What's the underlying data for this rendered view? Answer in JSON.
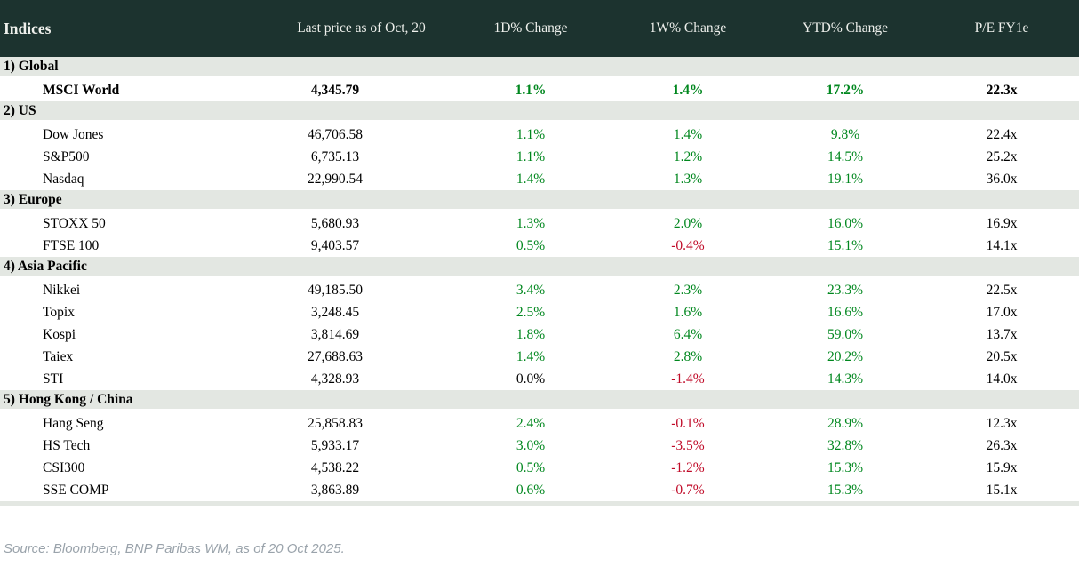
{
  "source_note": "Source: Bloomberg, BNP Paribas WM, as of 20 Oct 2025.",
  "colors": {
    "header_bg": "#1c332f",
    "section_bg": "#e3e7e2",
    "positive": "#00871e",
    "negative": "#c00a28",
    "neutral": "#000000",
    "source_text": "#9aa3ab"
  },
  "chart_data": {
    "type": "table",
    "title": "Indices",
    "columns": [
      "Indices",
      "Last price as of Oct, 20",
      "1D% Change",
      "1W% Change",
      "YTD% Change",
      "P/E FY1e"
    ],
    "sections": [
      {
        "label": "1) Global",
        "rows": [
          {
            "name": "MSCI World",
            "bold": true,
            "cells": [
              {
                "t": "4,345.79",
                "c": "black"
              },
              {
                "t": "1.1%",
                "c": "green"
              },
              {
                "t": "1.4%",
                "c": "green"
              },
              {
                "t": "17.2%",
                "c": "green"
              },
              {
                "t": "22.3x",
                "c": "black"
              }
            ]
          }
        ]
      },
      {
        "label": "2) US",
        "rows": [
          {
            "name": "Dow Jones",
            "bold": false,
            "cells": [
              {
                "t": "46,706.58",
                "c": "black"
              },
              {
                "t": "1.1%",
                "c": "green"
              },
              {
                "t": "1.4%",
                "c": "green"
              },
              {
                "t": "9.8%",
                "c": "green"
              },
              {
                "t": "22.4x",
                "c": "black"
              }
            ]
          },
          {
            "name": "S&P500",
            "bold": false,
            "cells": [
              {
                "t": "6,735.13",
                "c": "black"
              },
              {
                "t": "1.1%",
                "c": "green"
              },
              {
                "t": "1.2%",
                "c": "green"
              },
              {
                "t": "14.5%",
                "c": "green"
              },
              {
                "t": "25.2x",
                "c": "black"
              }
            ]
          },
          {
            "name": "Nasdaq",
            "bold": false,
            "cells": [
              {
                "t": "22,990.54",
                "c": "black"
              },
              {
                "t": "1.4%",
                "c": "green"
              },
              {
                "t": "1.3%",
                "c": "green"
              },
              {
                "t": "19.1%",
                "c": "green"
              },
              {
                "t": "36.0x",
                "c": "black"
              }
            ]
          }
        ]
      },
      {
        "label": "3) Europe",
        "rows": [
          {
            "name": "STOXX 50",
            "bold": false,
            "cells": [
              {
                "t": "5,680.93",
                "c": "black"
              },
              {
                "t": "1.3%",
                "c": "green"
              },
              {
                "t": "2.0%",
                "c": "green"
              },
              {
                "t": "16.0%",
                "c": "green"
              },
              {
                "t": "16.9x",
                "c": "black"
              }
            ]
          },
          {
            "name": "FTSE 100",
            "bold": false,
            "cells": [
              {
                "t": "9,403.57",
                "c": "black"
              },
              {
                "t": "0.5%",
                "c": "green"
              },
              {
                "t": "-0.4%",
                "c": "red"
              },
              {
                "t": "15.1%",
                "c": "green"
              },
              {
                "t": "14.1x",
                "c": "black"
              }
            ]
          }
        ]
      },
      {
        "label": "4) Asia Pacific",
        "rows": [
          {
            "name": "Nikkei",
            "bold": false,
            "cells": [
              {
                "t": "49,185.50",
                "c": "black"
              },
              {
                "t": "3.4%",
                "c": "green"
              },
              {
                "t": "2.3%",
                "c": "green"
              },
              {
                "t": "23.3%",
                "c": "green"
              },
              {
                "t": "22.5x",
                "c": "black"
              }
            ]
          },
          {
            "name": "Topix",
            "bold": false,
            "cells": [
              {
                "t": "3,248.45",
                "c": "black"
              },
              {
                "t": "2.5%",
                "c": "green"
              },
              {
                "t": "1.6%",
                "c": "green"
              },
              {
                "t": "16.6%",
                "c": "green"
              },
              {
                "t": "17.0x",
                "c": "black"
              }
            ]
          },
          {
            "name": "Kospi",
            "bold": false,
            "cells": [
              {
                "t": "3,814.69",
                "c": "black"
              },
              {
                "t": "1.8%",
                "c": "green"
              },
              {
                "t": "6.4%",
                "c": "green"
              },
              {
                "t": "59.0%",
                "c": "green"
              },
              {
                "t": "13.7x",
                "c": "black"
              }
            ]
          },
          {
            "name": "Taiex",
            "bold": false,
            "cells": [
              {
                "t": "27,688.63",
                "c": "black"
              },
              {
                "t": "1.4%",
                "c": "green"
              },
              {
                "t": "2.8%",
                "c": "green"
              },
              {
                "t": "20.2%",
                "c": "green"
              },
              {
                "t": "20.5x",
                "c": "black"
              }
            ]
          },
          {
            "name": "STI",
            "bold": false,
            "cells": [
              {
                "t": "4,328.93",
                "c": "black"
              },
              {
                "t": "0.0%",
                "c": "black"
              },
              {
                "t": "-1.4%",
                "c": "red"
              },
              {
                "t": "14.3%",
                "c": "green"
              },
              {
                "t": "14.0x",
                "c": "black"
              }
            ]
          }
        ]
      },
      {
        "label": "5) Hong Kong / China",
        "rows": [
          {
            "name": "Hang Seng",
            "bold": false,
            "cells": [
              {
                "t": "25,858.83",
                "c": "black"
              },
              {
                "t": "2.4%",
                "c": "green"
              },
              {
                "t": "-0.1%",
                "c": "red"
              },
              {
                "t": "28.9%",
                "c": "green"
              },
              {
                "t": "12.3x",
                "c": "black"
              }
            ]
          },
          {
            "name": "HS Tech",
            "bold": false,
            "cells": [
              {
                "t": "5,933.17",
                "c": "black"
              },
              {
                "t": "3.0%",
                "c": "green"
              },
              {
                "t": "-3.5%",
                "c": "red"
              },
              {
                "t": "32.8%",
                "c": "green"
              },
              {
                "t": "26.3x",
                "c": "black"
              }
            ]
          },
          {
            "name": "CSI300",
            "bold": false,
            "cells": [
              {
                "t": "4,538.22",
                "c": "black"
              },
              {
                "t": "0.5%",
                "c": "green"
              },
              {
                "t": "-1.2%",
                "c": "red"
              },
              {
                "t": "15.3%",
                "c": "green"
              },
              {
                "t": "15.9x",
                "c": "black"
              }
            ]
          },
          {
            "name": "SSE COMP",
            "bold": false,
            "cells": [
              {
                "t": "3,863.89",
                "c": "black"
              },
              {
                "t": "0.6%",
                "c": "green"
              },
              {
                "t": "-0.7%",
                "c": "red"
              },
              {
                "t": "15.3%",
                "c": "green"
              },
              {
                "t": "15.1x",
                "c": "black"
              }
            ]
          }
        ]
      }
    ]
  }
}
